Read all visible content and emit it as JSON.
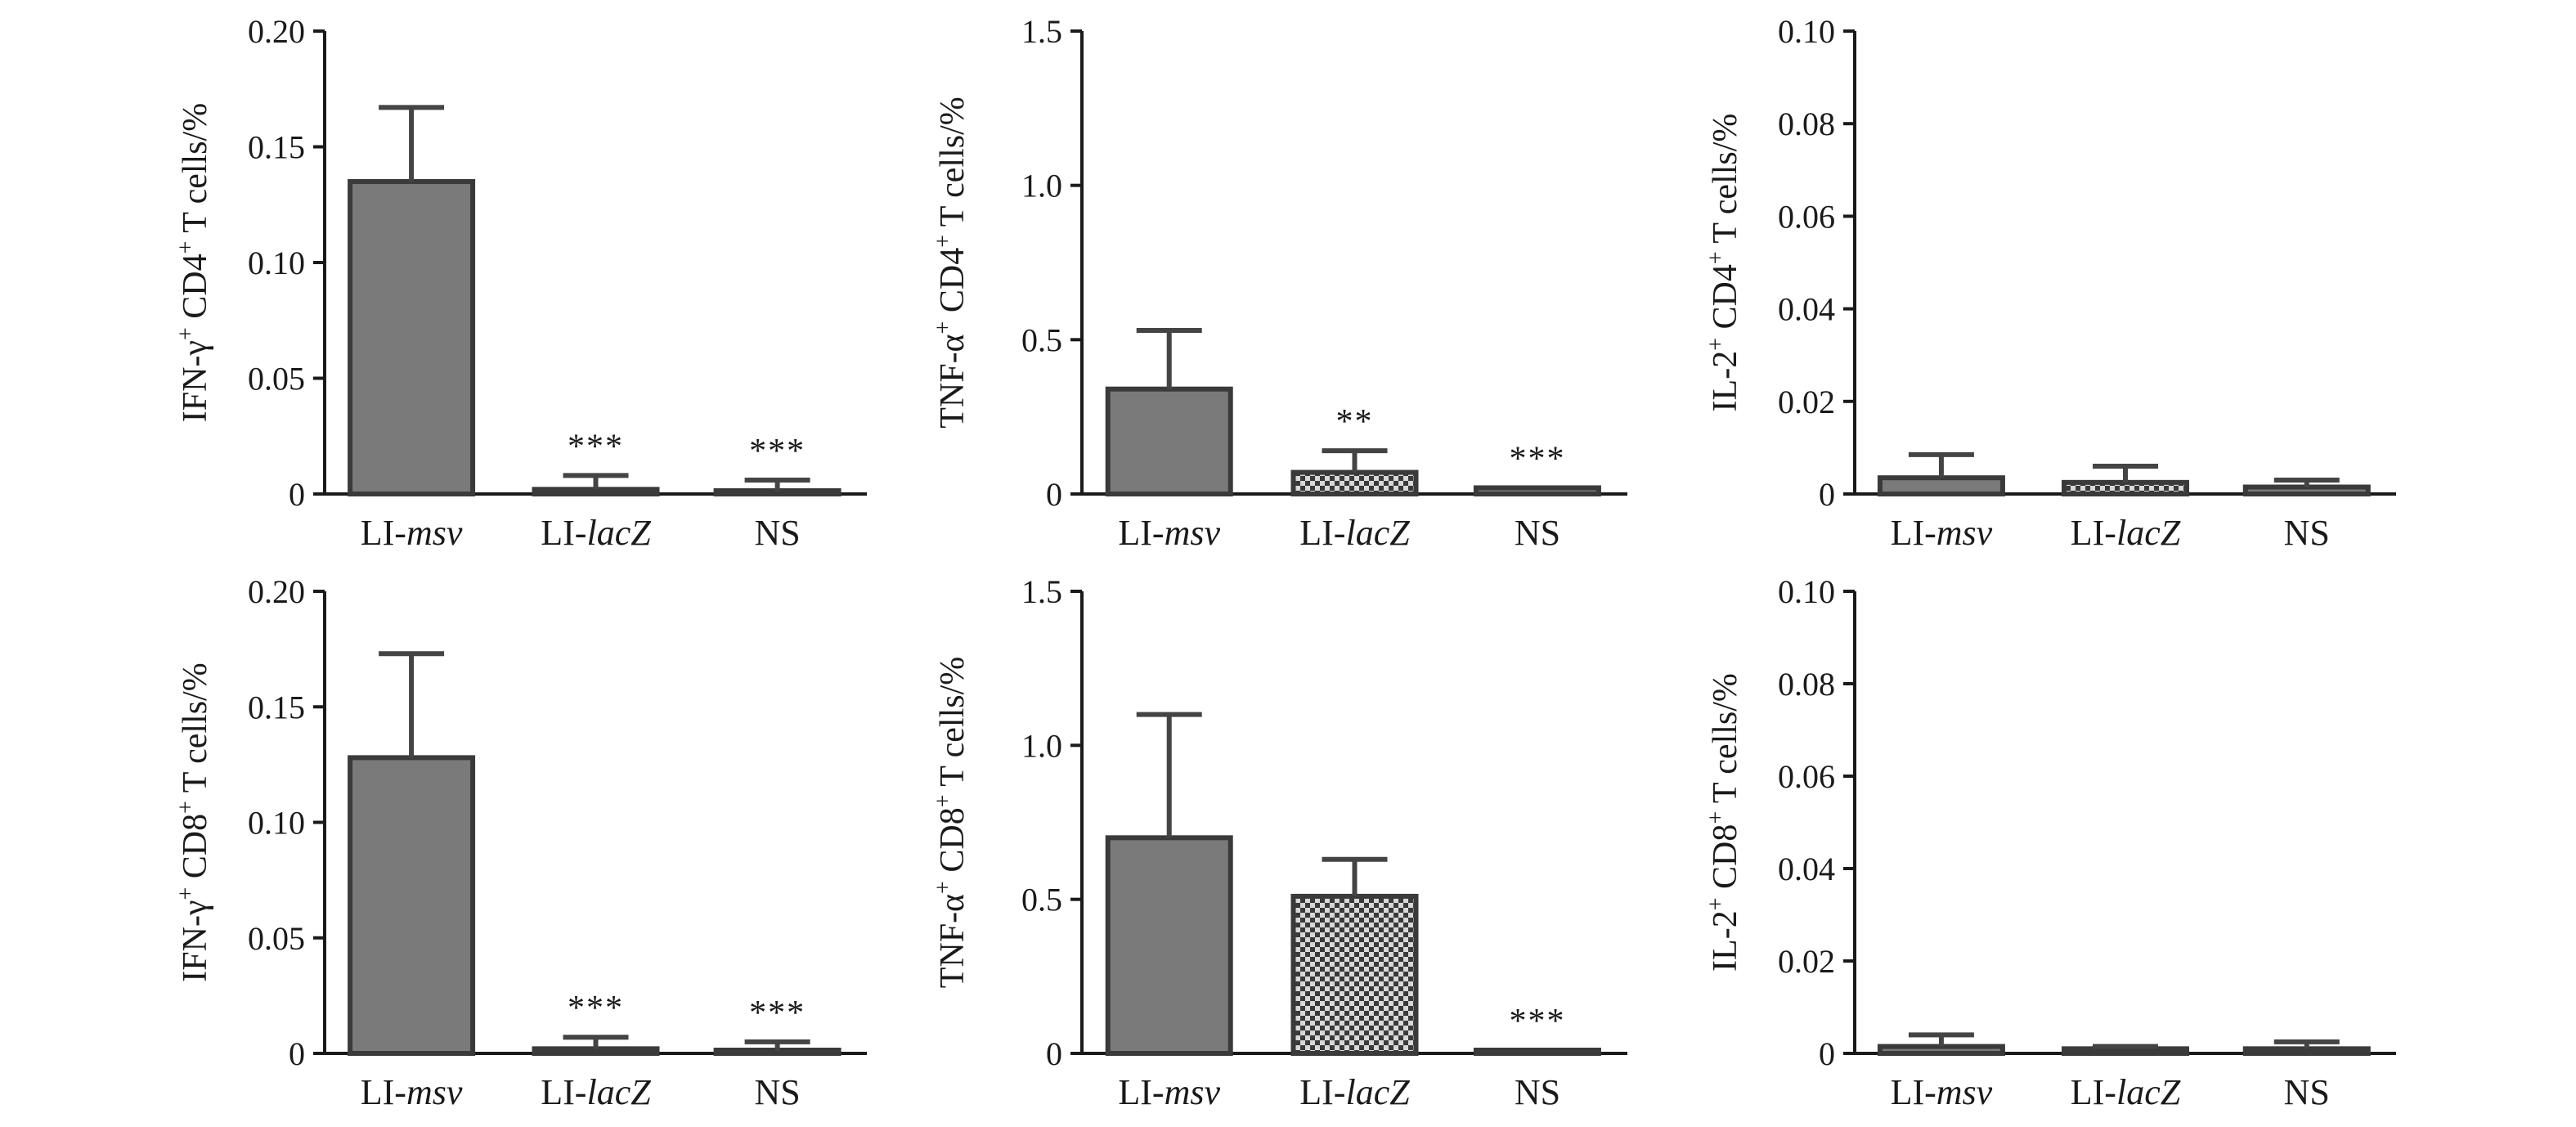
{
  "chart_data": [
    {
      "type": "bar",
      "ylabel_parts": {
        "pre": "IFN-γ",
        "sup1": "+",
        "mid": " CD4",
        "sup2": "+",
        "post": " T cells/%"
      },
      "ylim": [
        0,
        0.2
      ],
      "yticks": [
        "0",
        "0.05",
        "0.10",
        "0.15",
        "0.20"
      ],
      "ytick_values": [
        0,
        0.05,
        0.1,
        0.15,
        0.2
      ],
      "categories": [
        {
          "pre": "LI-",
          "ital": "msv"
        },
        {
          "pre": "LI-",
          "ital": "lacZ"
        },
        {
          "pre": "NS",
          "ital": ""
        }
      ],
      "values": [
        0.135,
        0.002,
        0.001
      ],
      "errors": [
        0.032,
        0.006,
        0.005
      ],
      "significance": [
        "",
        "***",
        "***"
      ],
      "patterns": [
        "solid",
        "solid",
        "solid"
      ]
    },
    {
      "type": "bar",
      "ylabel_parts": {
        "pre": "TNF-α",
        "sup1": "+",
        "mid": " CD4",
        "sup2": "+",
        "post": " T cells/%"
      },
      "ylim": [
        0,
        1.5
      ],
      "yticks": [
        "0",
        "0.5",
        "1.0",
        "1.5"
      ],
      "ytick_values": [
        0,
        0.5,
        1.0,
        1.5
      ],
      "categories": [
        {
          "pre": "LI-",
          "ital": "msv"
        },
        {
          "pre": "LI-",
          "ital": "lacZ"
        },
        {
          "pre": "NS",
          "ital": ""
        }
      ],
      "values": [
        0.34,
        0.07,
        0.02
      ],
      "errors": [
        0.19,
        0.07,
        0.0
      ],
      "significance": [
        "",
        "**",
        "***"
      ],
      "patterns": [
        "solid",
        "checker",
        "solid"
      ]
    },
    {
      "type": "bar",
      "ylabel_parts": {
        "pre": "IL-2",
        "sup1": "+",
        "mid": " CD4",
        "sup2": "+",
        "post": " T cells/%"
      },
      "ylim": [
        0,
        0.1
      ],
      "yticks": [
        "0",
        "0.02",
        "0.04",
        "0.06",
        "0.08",
        "0.10"
      ],
      "ytick_values": [
        0,
        0.02,
        0.04,
        0.06,
        0.08,
        0.1
      ],
      "categories": [
        {
          "pre": "LI-",
          "ital": "msv"
        },
        {
          "pre": "LI-",
          "ital": "lacZ"
        },
        {
          "pre": "NS",
          "ital": ""
        }
      ],
      "values": [
        0.0035,
        0.0025,
        0.0015
      ],
      "errors": [
        0.005,
        0.0035,
        0.0015
      ],
      "significance": [
        "",
        "",
        ""
      ],
      "patterns": [
        "solid",
        "checker",
        "solid"
      ]
    },
    {
      "type": "bar",
      "ylabel_parts": {
        "pre": "IFN-γ",
        "sup1": "+",
        "mid": " CD8",
        "sup2": "+",
        "post": " T cells/%"
      },
      "ylim": [
        0,
        0.2
      ],
      "yticks": [
        "0",
        "0.05",
        "0.10",
        "0.15",
        "0.20"
      ],
      "ytick_values": [
        0,
        0.05,
        0.1,
        0.15,
        0.2
      ],
      "categories": [
        {
          "pre": "LI-",
          "ital": "msv"
        },
        {
          "pre": "LI-",
          "ital": "lacZ"
        },
        {
          "pre": "NS",
          "ital": ""
        }
      ],
      "values": [
        0.128,
        0.002,
        0.001
      ],
      "errors": [
        0.045,
        0.005,
        0.004
      ],
      "significance": [
        "",
        "***",
        "***"
      ],
      "patterns": [
        "solid",
        "solid",
        "solid"
      ]
    },
    {
      "type": "bar",
      "ylabel_parts": {
        "pre": "TNF-α",
        "sup1": "+",
        "mid": " CD8",
        "sup2": "+",
        "post": " T cells/%"
      },
      "ylim": [
        0,
        1.5
      ],
      "yticks": [
        "0",
        "0.5",
        "1.0",
        "1.5"
      ],
      "ytick_values": [
        0,
        0.5,
        1.0,
        1.5
      ],
      "categories": [
        {
          "pre": "LI-",
          "ital": "msv"
        },
        {
          "pre": "LI-",
          "ital": "lacZ"
        },
        {
          "pre": "NS",
          "ital": ""
        }
      ],
      "values": [
        0.7,
        0.51,
        0.01
      ],
      "errors": [
        0.4,
        0.12,
        0.0
      ],
      "significance": [
        "",
        "",
        "***"
      ],
      "patterns": [
        "solid",
        "checker",
        "solid"
      ]
    },
    {
      "type": "bar",
      "ylabel_parts": {
        "pre": "IL-2",
        "sup1": "+",
        "mid": " CD8",
        "sup2": "+",
        "post": " T cells/%"
      },
      "ylim": [
        0,
        0.1
      ],
      "yticks": [
        "0",
        "0.02",
        "0.04",
        "0.06",
        "0.08",
        "0.10"
      ],
      "ytick_values": [
        0,
        0.02,
        0.04,
        0.06,
        0.08,
        0.1
      ],
      "categories": [
        {
          "pre": "LI-",
          "ital": "msv"
        },
        {
          "pre": "LI-",
          "ital": "lacZ"
        },
        {
          "pre": "NS",
          "ital": ""
        }
      ],
      "values": [
        0.0015,
        0.001,
        0.001
      ],
      "errors": [
        0.0025,
        0.0005,
        0.0015
      ],
      "significance": [
        "",
        "",
        ""
      ],
      "patterns": [
        "solid",
        "checker",
        "solid"
      ]
    }
  ],
  "colors": {
    "bar_fill": "#7a7a7a",
    "bar_stroke": "#3a3a3a",
    "axis": "#1a1a1a",
    "error_bar": "#444444",
    "checker_dark": "#3a3a3a",
    "checker_light": "#d8d8d8"
  }
}
